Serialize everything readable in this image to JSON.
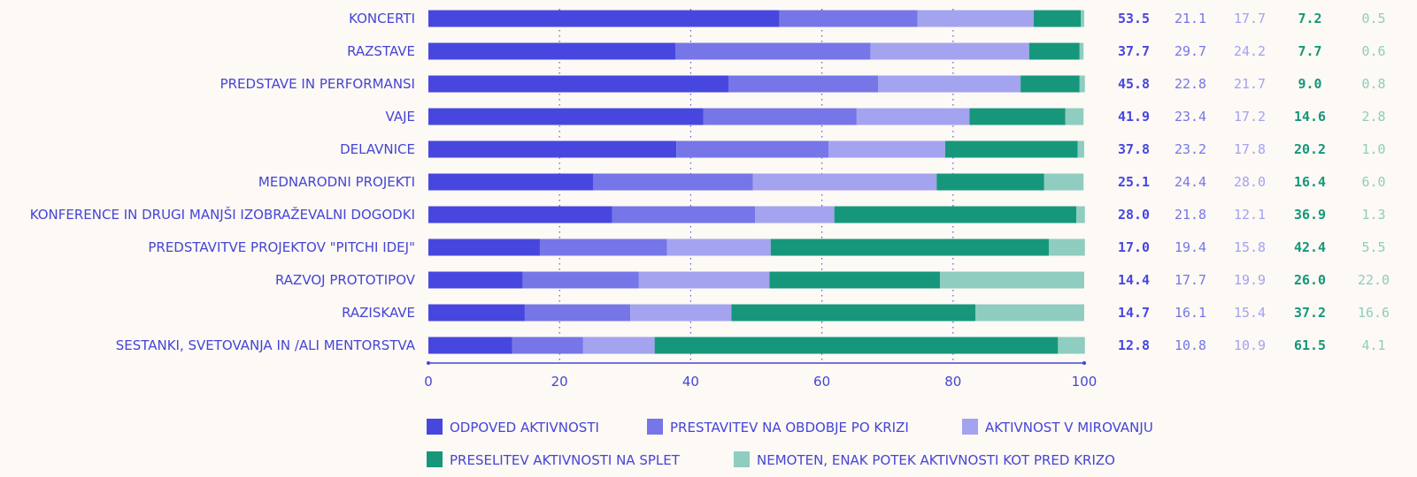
{
  "chart_data": {
    "type": "bar",
    "orientation": "horizontal",
    "stacked": true,
    "xlim": [
      0,
      100
    ],
    "xticks": [
      "0",
      "20",
      "40",
      "60",
      "80",
      "100"
    ],
    "grid": "dotted vertical at 20, 40, 60, 80",
    "legend_position": "bottom",
    "categories": [
      "KONCERTI",
      "RAZSTAVE",
      "PREDSTAVE IN PERFORMANSI",
      "VAJE",
      "DELAVNICE",
      "MEDNARODNI PROJEKTI",
      "KONFERENCE IN DRUGI MANJŠI IZOBRAŽEVALNI DOGODKI",
      "PREDSTAVITVE PROJEKTOV \"PITCHI IDEJ\"",
      "RAZVOJ PROTOTIPOV",
      "RAZISKAVE",
      "SESTANKI, SVETOVANJA IN /ALI MENTORSTVA"
    ],
    "series": [
      {
        "name": "ODPOVED AKTIVNOSTI",
        "color": "#4747e0",
        "label_color": "#4747e0",
        "values": [
          "53.5",
          "37.7",
          "45.8",
          "41.9",
          "37.8",
          "25.1",
          "28.0",
          "17.0",
          "14.4",
          "14.7",
          "12.8"
        ]
      },
      {
        "name": "PRESTAVITEV NA OBDOBJE PO KRIZI",
        "color": "#7676e8",
        "label_color": "#7676e8",
        "values": [
          "21.1",
          "29.7",
          "22.8",
          "23.4",
          "23.2",
          "24.4",
          "21.8",
          "19.4",
          "17.7",
          "16.1",
          "10.8"
        ]
      },
      {
        "name": "AKTIVNOST V MIROVANJU",
        "color": "#a3a3f0",
        "label_color": "#a3a3f0",
        "values": [
          "17.7",
          "24.2",
          "21.7",
          "17.2",
          "17.8",
          "28.0",
          "12.1",
          "15.8",
          "19.9",
          "15.4",
          "10.9"
        ]
      },
      {
        "name": "PRESELITEV AKTIVNOSTI NA SPLET",
        "color": "#16977b",
        "label_color": "#16977b",
        "values": [
          "7.2",
          "7.7",
          "9.0",
          "14.6",
          "20.2",
          "16.4",
          "36.9",
          "42.4",
          "26.0",
          "37.2",
          "61.5"
        ]
      },
      {
        "name": "NEMOTEN, ENAK POTEK AKTIVNOSTI KOT PRED KRIZO",
        "color": "#8ecdbf",
        "label_color": "#8ecdbf",
        "values": [
          "0.5",
          "0.6",
          "0.8",
          "2.8",
          "1.0",
          "6.0",
          "1.3",
          "5.5",
          "22.0",
          "16.6",
          "4.1"
        ]
      }
    ]
  }
}
